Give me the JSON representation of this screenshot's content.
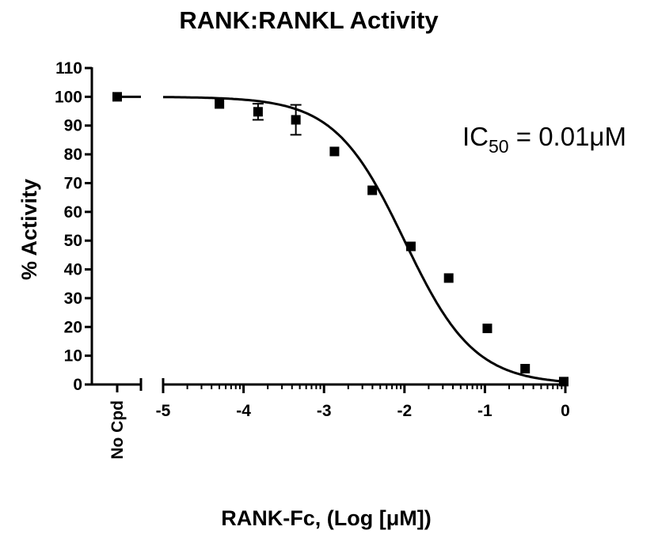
{
  "chart_data": {
    "type": "scatter",
    "title": "RANK:RANKL Activity",
    "xlabel": "RANK-Fc, (Log [μM])",
    "ylabel": "% Activity",
    "xlim": [
      -5,
      0
    ],
    "ylim": [
      0,
      110
    ],
    "x_ticks": [
      -5,
      -4,
      -3,
      -2,
      -1,
      0
    ],
    "y_ticks": [
      0,
      10,
      20,
      30,
      40,
      50,
      60,
      70,
      80,
      90,
      100,
      110
    ],
    "control": {
      "label": "No Cpd",
      "y": 100
    },
    "points": [
      {
        "x": -4.3,
        "y": 97.5,
        "err": 0
      },
      {
        "x": -3.82,
        "y": 94.8,
        "err": 2.8
      },
      {
        "x": -3.35,
        "y": 92,
        "err": 5.2
      },
      {
        "x": -2.87,
        "y": 81,
        "err": 0
      },
      {
        "x": -2.4,
        "y": 67.5,
        "err": 0
      },
      {
        "x": -1.92,
        "y": 48,
        "err": 0
      },
      {
        "x": -1.45,
        "y": 37,
        "err": 0
      },
      {
        "x": -0.97,
        "y": 19.5,
        "err": 0
      },
      {
        "x": -0.5,
        "y": 5.5,
        "err": 0
      },
      {
        "x": -0.02,
        "y": 1,
        "err": 0
      }
    ],
    "fit": {
      "model": "sigmoidal dose-response",
      "top": 100,
      "bottom": 0,
      "logIC50": -2.0,
      "hill": -1
    },
    "annotation": {
      "prefix": "IC",
      "subscript": "50",
      "suffix": " = 0.01μM"
    },
    "grid": false,
    "colors": {
      "marker": "#000000",
      "line": "#000000",
      "axis": "#000000"
    }
  }
}
